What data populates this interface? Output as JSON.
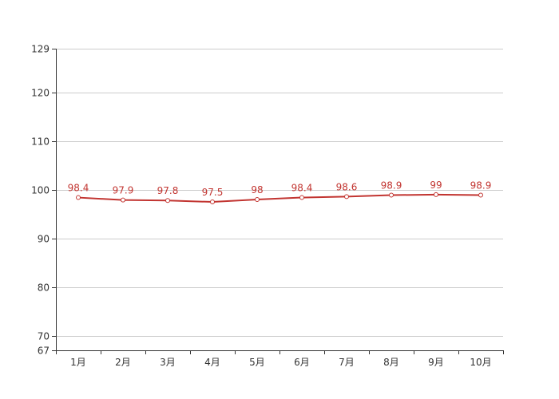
{
  "chart_data": {
    "type": "line",
    "title": "",
    "xlabel": "",
    "ylabel": "",
    "categories": [
      "1月",
      "2月",
      "3月",
      "4月",
      "5月",
      "6月",
      "7月",
      "8月",
      "9月",
      "10月"
    ],
    "series": [
      {
        "name": "",
        "values": [
          98.4,
          97.9,
          97.8,
          97.5,
          98,
          98.4,
          98.6,
          98.9,
          99,
          98.9
        ],
        "labels": [
          "98.4",
          "97.9",
          "97.8",
          "97.5",
          "98",
          "98.4",
          "98.6",
          "98.9",
          "99",
          "98.9"
        ],
        "color": "#c23531"
      }
    ],
    "ylim": [
      67,
      129
    ],
    "yticks": [
      67,
      70,
      80,
      90,
      100,
      110,
      120,
      129
    ],
    "ytick_labels": [
      "67",
      "70",
      "80",
      "90",
      "100",
      "110",
      "120",
      "129"
    ],
    "grid": true,
    "legend": "none"
  },
  "colors": {
    "line": "#c23531",
    "axis": "#333333",
    "grid": "#cccccc"
  }
}
